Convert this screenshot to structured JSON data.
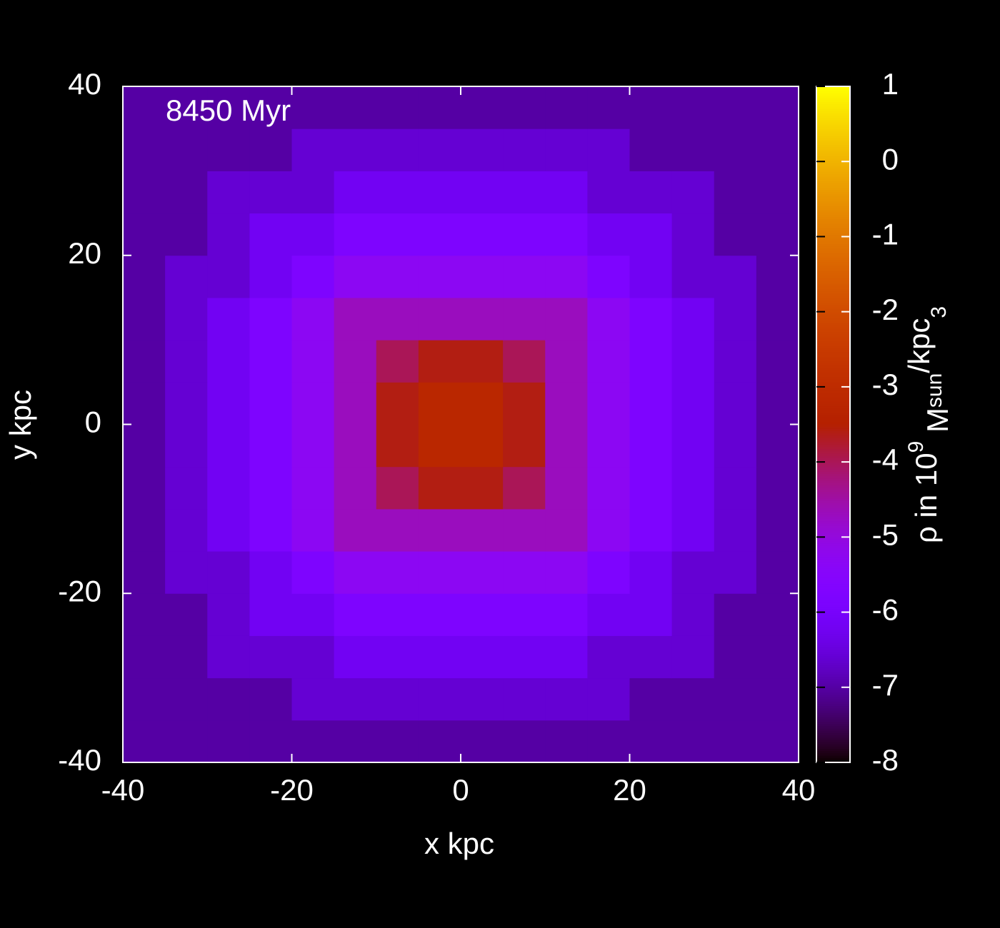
{
  "chart_data": {
    "type": "heatmap",
    "annotation": "8450 Myr",
    "xlabel": "x kpc",
    "ylabel": "y kpc",
    "zlabel": [
      "ρ in 10",
      "9",
      " M",
      "sun",
      "/kpc",
      "3"
    ],
    "colormap": "gnuplot",
    "xbins": [
      -40,
      -35,
      -30,
      -25,
      -20,
      -15,
      -10,
      -5,
      0,
      5,
      10,
      15,
      20,
      25,
      30,
      35,
      40
    ],
    "ybins": [
      -40,
      -35,
      -30,
      -25,
      -20,
      -15,
      -10,
      -5,
      0,
      5,
      10,
      15,
      20,
      25,
      30,
      35,
      40
    ],
    "z": [
      [
        -7.0,
        -7.0,
        -7.0,
        -7.0,
        -7.0,
        -7.0,
        -7.0,
        -7.0,
        -7.0,
        -7.0,
        -7.0,
        -7.0,
        -7.0,
        -7.0,
        -7.0,
        -7.0
      ],
      [
        -7.0,
        -7.0,
        -7.0,
        -7.0,
        -6.6,
        -6.6,
        -6.6,
        -6.6,
        -6.6,
        -6.6,
        -6.6,
        -6.6,
        -7.0,
        -7.0,
        -7.0,
        -7.0
      ],
      [
        -7.0,
        -7.0,
        -6.6,
        -6.6,
        -6.6,
        -6.2,
        -6.2,
        -6.2,
        -6.2,
        -6.2,
        -6.2,
        -6.6,
        -6.6,
        -6.6,
        -7.0,
        -7.0
      ],
      [
        -7.0,
        -7.0,
        -6.6,
        -6.2,
        -6.2,
        -5.8,
        -5.8,
        -5.8,
        -5.8,
        -5.8,
        -5.8,
        -6.2,
        -6.2,
        -6.6,
        -7.0,
        -7.0
      ],
      [
        -7.0,
        -6.6,
        -6.6,
        -6.2,
        -5.8,
        -5.3,
        -5.3,
        -5.3,
        -5.3,
        -5.3,
        -5.3,
        -5.8,
        -6.2,
        -6.6,
        -6.6,
        -7.0
      ],
      [
        -7.0,
        -6.6,
        -6.2,
        -5.8,
        -5.3,
        -4.7,
        -4.7,
        -4.7,
        -4.7,
        -4.7,
        -4.7,
        -5.3,
        -5.8,
        -6.2,
        -6.6,
        -7.0
      ],
      [
        -7.0,
        -6.6,
        -6.2,
        -5.8,
        -5.3,
        -4.7,
        -4.0,
        -3.6,
        -3.6,
        -4.0,
        -4.7,
        -5.3,
        -5.8,
        -6.2,
        -6.6,
        -7.0
      ],
      [
        -7.0,
        -6.6,
        -6.2,
        -5.8,
        -5.3,
        -4.7,
        -3.6,
        -3.2,
        -3.2,
        -3.6,
        -4.7,
        -5.3,
        -5.8,
        -6.2,
        -6.6,
        -7.0
      ],
      [
        -7.0,
        -6.6,
        -6.2,
        -5.8,
        -5.3,
        -4.7,
        -3.6,
        -3.2,
        -3.2,
        -3.6,
        -4.7,
        -5.3,
        -5.8,
        -6.2,
        -6.6,
        -7.0
      ],
      [
        -7.0,
        -6.6,
        -6.2,
        -5.8,
        -5.3,
        -4.7,
        -4.0,
        -3.6,
        -3.6,
        -4.0,
        -4.7,
        -5.3,
        -5.8,
        -6.2,
        -6.6,
        -7.0
      ],
      [
        -7.0,
        -6.6,
        -6.2,
        -5.8,
        -5.3,
        -4.7,
        -4.7,
        -4.7,
        -4.7,
        -4.7,
        -4.7,
        -5.3,
        -5.8,
        -6.2,
        -6.6,
        -7.0
      ],
      [
        -7.0,
        -6.6,
        -6.6,
        -6.2,
        -5.8,
        -5.3,
        -5.3,
        -5.3,
        -5.3,
        -5.3,
        -5.3,
        -5.8,
        -6.2,
        -6.6,
        -6.6,
        -7.0
      ],
      [
        -7.0,
        -7.0,
        -6.6,
        -6.2,
        -6.2,
        -5.8,
        -5.8,
        -5.8,
        -5.8,
        -5.8,
        -5.8,
        -6.2,
        -6.2,
        -6.6,
        -7.0,
        -7.0
      ],
      [
        -7.0,
        -7.0,
        -6.6,
        -6.6,
        -6.6,
        -6.2,
        -6.2,
        -6.2,
        -6.2,
        -6.2,
        -6.2,
        -6.6,
        -6.6,
        -6.6,
        -7.0,
        -7.0
      ],
      [
        -7.0,
        -7.0,
        -7.0,
        -7.0,
        -6.6,
        -6.6,
        -6.6,
        -6.6,
        -6.6,
        -6.6,
        -6.6,
        -6.6,
        -7.0,
        -7.0,
        -7.0,
        -7.0
      ],
      [
        -7.0,
        -7.0,
        -7.0,
        -7.0,
        -7.0,
        -7.0,
        -7.0,
        -7.0,
        -7.0,
        -7.0,
        -7.0,
        -7.0,
        -7.0,
        -7.0,
        -7.0,
        -7.0
      ]
    ],
    "xlim": [
      -40,
      40
    ],
    "xticks": [
      -40,
      -20,
      0,
      20,
      40
    ],
    "ylim": [
      -40,
      40
    ],
    "yticks": [
      -40,
      -20,
      0,
      20,
      40
    ],
    "zlim": [
      -8,
      1
    ],
    "zticks": [
      -8,
      -7,
      -6,
      -5,
      -4,
      -3,
      -2,
      -1,
      0,
      1
    ]
  }
}
